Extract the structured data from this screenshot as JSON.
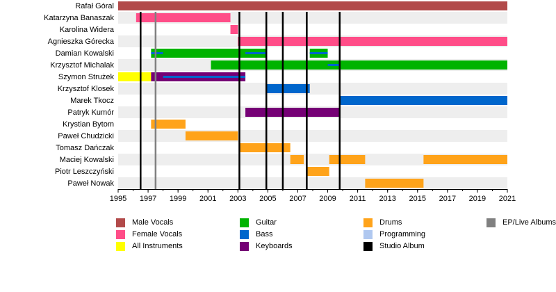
{
  "chart_data": {
    "type": "timeline",
    "xlim": [
      1995,
      2021
    ],
    "ticks": [
      1995,
      1997,
      1999,
      2001,
      2003,
      2005,
      2007,
      2009,
      2011,
      2013,
      2015,
      2017,
      2019,
      2021
    ],
    "members": [
      {
        "name": "Rafał Góral",
        "bars": [
          {
            "role": "Male Vocals",
            "start": 1995.0,
            "end": 2021.0
          }
        ]
      },
      {
        "name": "Katarzyna Banaszak",
        "bars": [
          {
            "role": "Female Vocals",
            "start": 1996.2,
            "end": 2002.5
          }
        ]
      },
      {
        "name": "Karolina Widera",
        "bars": [
          {
            "role": "Female Vocals",
            "start": 2002.5,
            "end": 2003.0
          }
        ]
      },
      {
        "name": "Agnieszka Górecka",
        "bars": [
          {
            "role": "Female Vocals",
            "start": 2003.0,
            "end": 2021.0
          }
        ]
      },
      {
        "name": "Damian Kowalski",
        "bars": [
          {
            "role": "Guitar",
            "start": 1997.2,
            "end": 2004.9,
            "secondary": {
              "role": "Bass",
              "segments": [
                [
                  1997.2,
                  1998.0
                ],
                [
                  2003.5,
                  2004.9
                ]
              ]
            }
          },
          {
            "role": "Guitar",
            "start": 2007.8,
            "end": 2009.0,
            "secondary": {
              "role": "Bass",
              "segments": [
                [
                  2007.8,
                  2009.0
                ]
              ]
            }
          }
        ]
      },
      {
        "name": "Krzysztof Michalak",
        "bars": [
          {
            "role": "Guitar",
            "start": 2001.2,
            "end": 2021.0,
            "secondary": {
              "role": "Bass",
              "segments": [
                [
                  2009.0,
                  2009.8
                ]
              ]
            }
          }
        ]
      },
      {
        "name": "Szymon Strużek",
        "bars": [
          {
            "role": "All Instruments",
            "start": 1995.0,
            "end": 1997.2
          },
          {
            "role": "Keyboards",
            "start": 1997.2,
            "end": 2003.5,
            "secondary": {
              "role": "Bass",
              "segments": [
                [
                  1998.0,
                  2003.5
                ]
              ]
            }
          }
        ]
      },
      {
        "name": "Krzysztof Klosek",
        "bars": [
          {
            "role": "Bass",
            "start": 2004.9,
            "end": 2007.8
          }
        ]
      },
      {
        "name": "Marek Tkocz",
        "bars": [
          {
            "role": "Bass",
            "start": 2009.8,
            "end": 2021.0
          }
        ]
      },
      {
        "name": "Patryk Kumór",
        "bars": [
          {
            "role": "Keyboards",
            "start": 2003.5,
            "end": 2009.8
          }
        ]
      },
      {
        "name": "Krystian Bytom",
        "bars": [
          {
            "role": "Drums",
            "start": 1997.2,
            "end": 1999.5
          }
        ]
      },
      {
        "name": "Paweł Chudzicki",
        "bars": [
          {
            "role": "Drums",
            "start": 1999.5,
            "end": 2003.0
          }
        ]
      },
      {
        "name": "Tomasz Dańczak",
        "bars": [
          {
            "role": "Drums",
            "start": 2003.1,
            "end": 2006.5
          }
        ]
      },
      {
        "name": "Maciej Kowalski",
        "bars": [
          {
            "role": "Drums",
            "start": 2006.5,
            "end": 2007.4
          },
          {
            "role": "Drums",
            "start": 2009.1,
            "end": 2011.5
          },
          {
            "role": "Drums",
            "start": 2015.4,
            "end": 2021.0
          }
        ]
      },
      {
        "name": "Piotr Leszczyński",
        "bars": [
          {
            "role": "Drums",
            "start": 2007.6,
            "end": 2009.1
          }
        ]
      },
      {
        "name": "Paweł Nowak",
        "bars": [
          {
            "role": "Drums",
            "start": 2011.5,
            "end": 2015.4
          }
        ]
      }
    ],
    "studio_albums": [
      1996.5,
      2003.1,
      2004.9,
      2006.0,
      2007.6,
      2009.8
    ],
    "ep_live_albums": [
      1997.5
    ]
  },
  "legend": [
    {
      "label": "Male Vocals",
      "color": "#b24a4a"
    },
    {
      "label": "Female Vocals",
      "color": "#ff4d88"
    },
    {
      "label": "All Instruments",
      "color": "#ffff00"
    },
    {
      "label": "Guitar",
      "color": "#00b300"
    },
    {
      "label": "Bass",
      "color": "#0066cc"
    },
    {
      "label": "Keyboards",
      "color": "#750075"
    },
    {
      "label": "Drums",
      "color": "#ffa31a"
    },
    {
      "label": "Programming",
      "color": "#b0c8f0"
    },
    {
      "label": "Studio Album",
      "color": "#000000"
    },
    {
      "label": "EP/Live Albums",
      "color": "#808080"
    }
  ],
  "colors": {
    "Male Vocals": "#b24a4a",
    "Female Vocals": "#ff4d88",
    "All Instruments": "#ffff00",
    "Guitar": "#00b300",
    "Bass": "#0066cc",
    "Keyboards": "#750075",
    "Drums": "#ffa31a",
    "Programming": "#b0c8f0",
    "Studio Album": "#000000",
    "EP/Live Albums": "#808080",
    "row_stripe": "#eeeeee"
  }
}
